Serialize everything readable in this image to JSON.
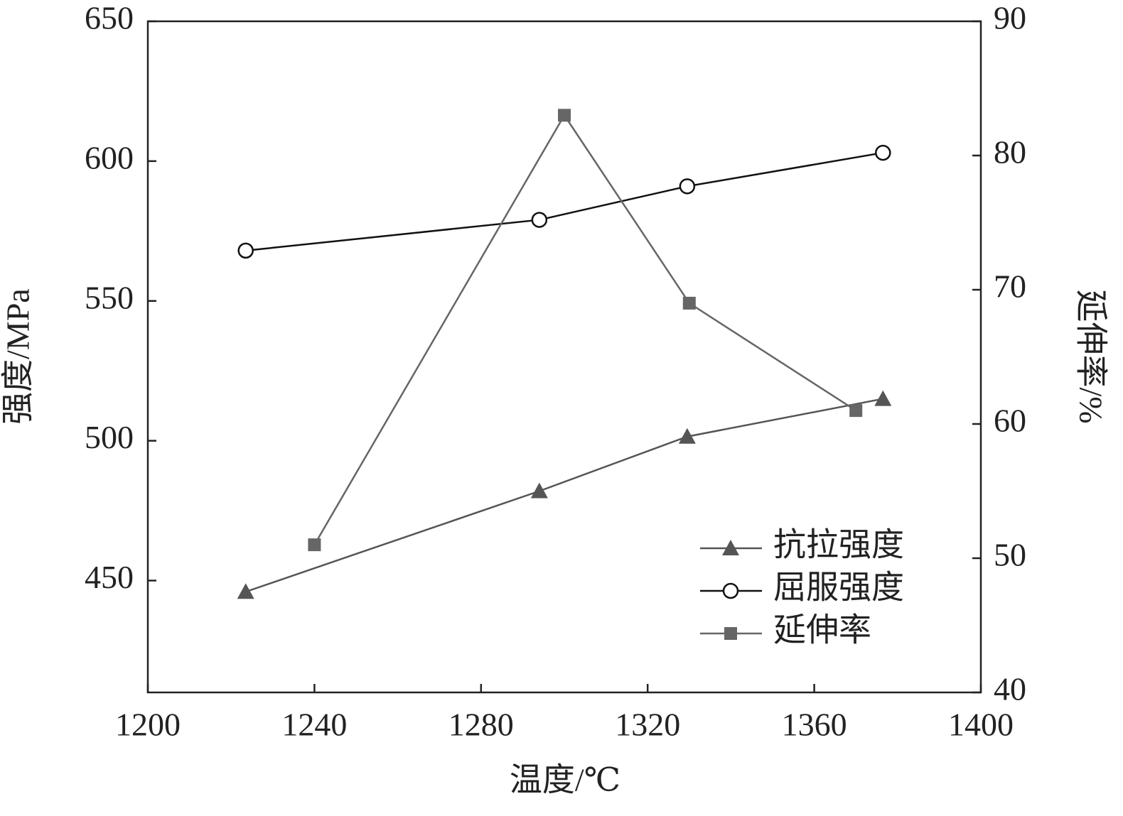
{
  "chart_data": {
    "type": "line",
    "xlabel": "温度/℃",
    "ylabel": "强度/MPa",
    "y2label": "延伸率/%",
    "xlim": [
      1200,
      1400
    ],
    "xticks": [
      1200,
      1240,
      1280,
      1320,
      1360,
      1400
    ],
    "ylim": [
      410,
      650
    ],
    "yticks": [
      450,
      500,
      550,
      600,
      650
    ],
    "y2lim": [
      40,
      90
    ],
    "y2ticks": [
      40,
      50,
      60,
      70,
      80,
      90
    ],
    "legend": "lower right",
    "series": [
      {
        "name": "抗拉强度",
        "color": "#555555",
        "marker": "triangle",
        "x": [
          1223.5,
          1294,
          1329.5,
          1376.5
        ],
        "values": [
          446,
          482,
          501.5,
          515
        ]
      },
      {
        "name": "屈服强度",
        "color": "#111111",
        "marker": "circle",
        "x": [
          1223.5,
          1294,
          1329.5,
          1376.5
        ],
        "values": [
          568,
          579,
          591,
          603
        ]
      },
      {
        "name": "延伸率",
        "color": "#666666",
        "marker": "square",
        "axis": "y2",
        "x": [
          1240,
          1300,
          1330,
          1370
        ],
        "values": [
          51,
          83,
          69,
          61
        ]
      }
    ]
  }
}
